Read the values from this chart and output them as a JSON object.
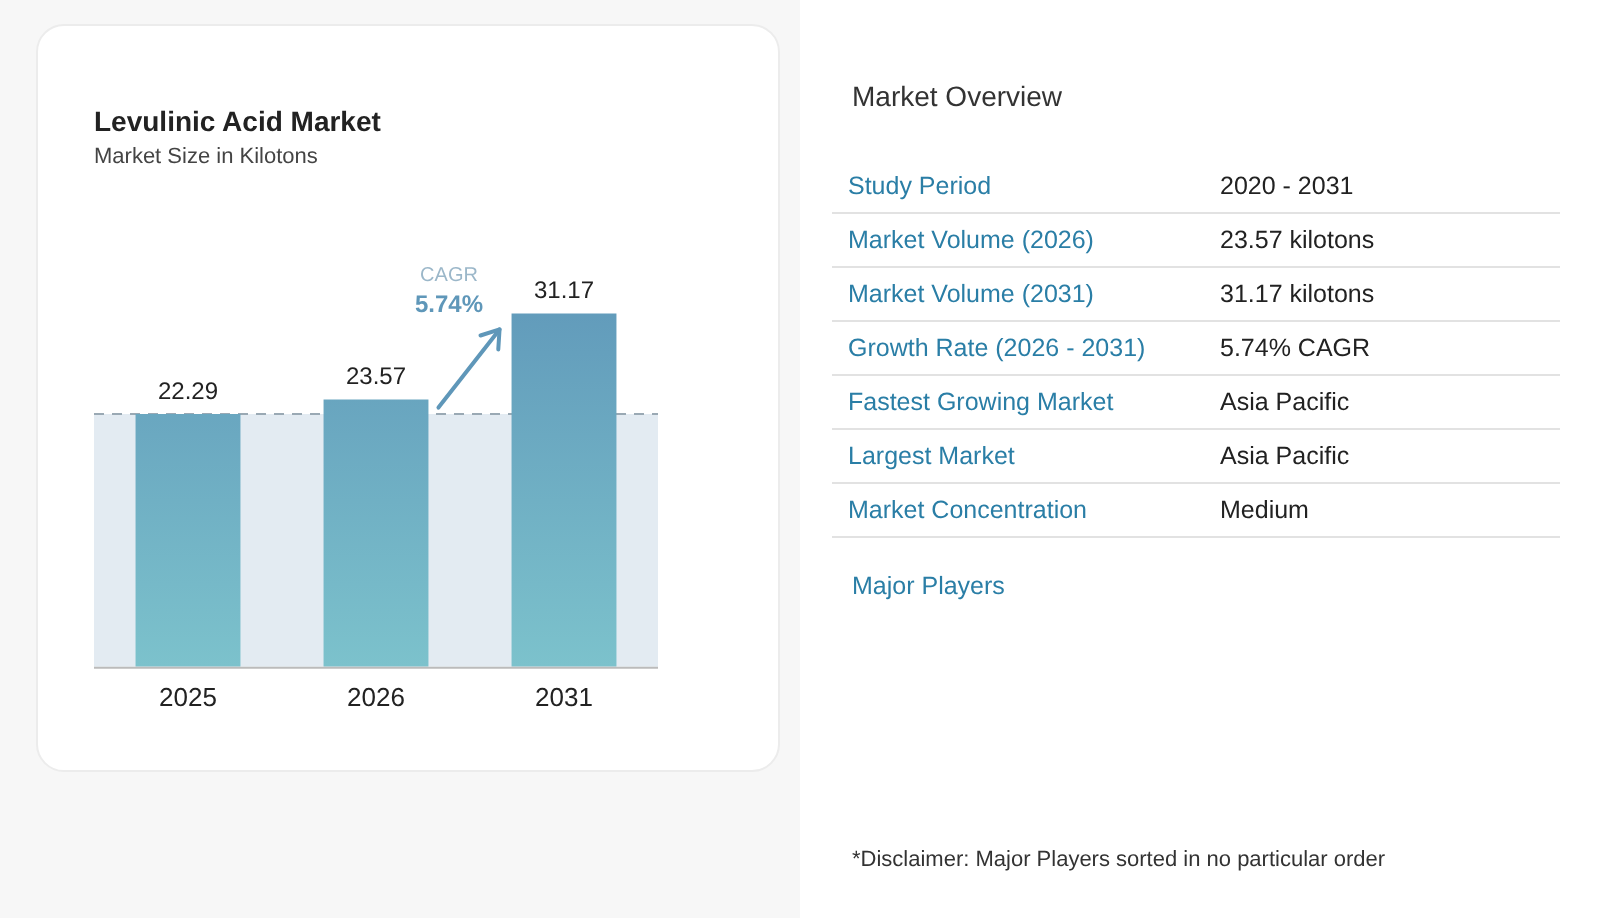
{
  "chart_data": [
    {
      "type": "bar",
      "title": "Levulinic Acid Market",
      "subtitle": "Market Size in Kilotons",
      "categories": [
        "2025",
        "2026",
        "2031"
      ],
      "values": [
        22.29,
        23.57,
        31.17
      ],
      "color": "#5f97b9",
      "data_labels": true,
      "tick_labels": "x",
      "grid": false,
      "legend": false,
      "ref_lines": [
        {
          "axis": "y",
          "value": 22.29,
          "color": "#9aa9b4",
          "line_style": "dashed"
        }
      ],
      "bands": [
        {
          "axis": "y",
          "from": 0,
          "to": 22.29,
          "color": "#e3ebf2"
        }
      ],
      "annotations": [
        "CAGR",
        "5.74%"
      ]
    },
    {
      "type": "other",
      "title": "Market Overview",
      "categories": [
        "Study Period",
        "Market Volume (2026)",
        "Market Volume (2031)",
        "Growth Rate (2026 - 2031)",
        "Fastest Growing Market",
        "Largest Market",
        "Market Concentration"
      ],
      "value_labels": [
        "2020 - 2031",
        "23.57 kilotons",
        "31.17 kilotons",
        "5.74% CAGR",
        "Asia Pacific",
        "Asia Pacific",
        "Medium"
      ],
      "annotations": [
        "Major Players",
        "*Disclaimer: Major Players sorted in no particular order"
      ]
    }
  ]
}
